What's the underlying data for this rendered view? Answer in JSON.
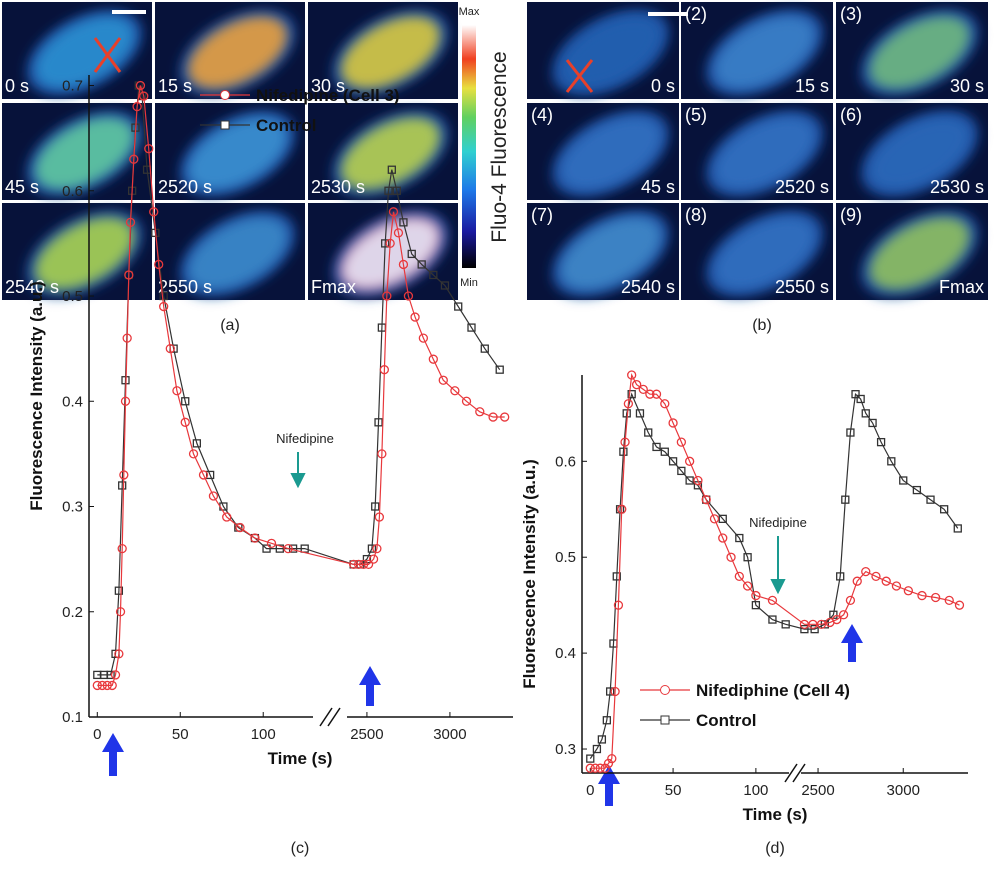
{
  "panels": [
    {
      "caption": "(a)",
      "tiles": [
        {
          "time": "0 s"
        },
        {
          "time": "15 s"
        },
        {
          "time": "30 s"
        },
        {
          "time": "45 s"
        },
        {
          "time": "2520 s"
        },
        {
          "time": "2530 s"
        },
        {
          "time": "2540 s"
        },
        {
          "time": "2550 s"
        },
        {
          "time": "Fmax"
        }
      ]
    },
    {
      "caption": "(b)",
      "tiles": [
        {
          "time": "0 s"
        },
        {
          "index": "(2)",
          "time": "15 s"
        },
        {
          "index": "(3)",
          "time": "30 s"
        },
        {
          "index": "(4)",
          "time": "45 s"
        },
        {
          "index": "(5)",
          "time": "2520 s"
        },
        {
          "index": "(6)",
          "time": "2530 s"
        },
        {
          "index": "(7)",
          "time": "2540 s"
        },
        {
          "index": "(8)",
          "time": "2550 s"
        },
        {
          "index": "(9)",
          "time": "Fmax"
        }
      ]
    }
  ],
  "colorbar": {
    "max": "Max",
    "min": "Min",
    "label": "Fluo-4 Fluorescence"
  },
  "chart_data": [
    {
      "type": "line",
      "caption": "(c)",
      "xlabel": "Time (s)",
      "ylabel": "Fluorescence Intensity (a.u.)",
      "annotation": "Nifedipine",
      "legend": "upper",
      "xlim": [
        -5,
        3380
      ],
      "xbreak": [
        130,
        2380
      ],
      "xticks": [
        0,
        50,
        100,
        2500,
        3000
      ],
      "ylim": [
        0.1,
        0.71
      ],
      "yticks": [
        0.1,
        0.2,
        0.3,
        0.4,
        0.5,
        0.6,
        0.7
      ],
      "series": [
        {
          "name": "Nifedipine (Cell 3)",
          "color": "#e8383c",
          "marker": "circle",
          "x": [
            0,
            3,
            6,
            9,
            11,
            13,
            14,
            15,
            16,
            17,
            18,
            19,
            20,
            22,
            24,
            26,
            28,
            31,
            34,
            37,
            40,
            44,
            48,
            53,
            58,
            64,
            70,
            78,
            86,
            95,
            105,
            115,
            2420,
            2450,
            2480,
            2510,
            2540,
            2560,
            2575,
            2590,
            2605,
            2620,
            2640,
            2660,
            2690,
            2720,
            2750,
            2790,
            2840,
            2900,
            2960,
            3030,
            3100,
            3180,
            3260,
            3330
          ],
          "values": [
            0.13,
            0.13,
            0.13,
            0.13,
            0.14,
            0.16,
            0.2,
            0.26,
            0.33,
            0.4,
            0.46,
            0.52,
            0.57,
            0.63,
            0.68,
            0.7,
            0.69,
            0.64,
            0.58,
            0.53,
            0.49,
            0.45,
            0.41,
            0.38,
            0.35,
            0.33,
            0.31,
            0.29,
            0.28,
            0.27,
            0.265,
            0.26,
            0.245,
            0.245,
            0.245,
            0.245,
            0.25,
            0.26,
            0.29,
            0.35,
            0.43,
            0.5,
            0.55,
            0.58,
            0.56,
            0.53,
            0.5,
            0.48,
            0.46,
            0.44,
            0.42,
            0.41,
            0.4,
            0.39,
            0.385,
            0.385
          ]
        },
        {
          "name": "Control",
          "color": "#333333",
          "marker": "square",
          "x": [
            0,
            4,
            8,
            11,
            13,
            15,
            17,
            19,
            21,
            23,
            25,
            27,
            30,
            35,
            40,
            46,
            53,
            60,
            68,
            76,
            85,
            95,
            102,
            110,
            118,
            125,
            2420,
            2460,
            2500,
            2530,
            2550,
            2570,
            2590,
            2610,
            2630,
            2650,
            2680,
            2720,
            2770,
            2830,
            2900,
            2970,
            3050,
            3130,
            3210,
            3300
          ],
          "values": [
            0.14,
            0.14,
            0.14,
            0.16,
            0.22,
            0.32,
            0.42,
            0.52,
            0.6,
            0.66,
            0.7,
            0.69,
            0.62,
            0.56,
            0.5,
            0.45,
            0.4,
            0.36,
            0.33,
            0.3,
            0.28,
            0.27,
            0.26,
            0.26,
            0.26,
            0.26,
            0.245,
            0.245,
            0.25,
            0.26,
            0.3,
            0.38,
            0.47,
            0.55,
            0.6,
            0.62,
            0.6,
            0.57,
            0.54,
            0.53,
            0.52,
            0.51,
            0.49,
            0.47,
            0.45,
            0.43
          ]
        }
      ]
    },
    {
      "type": "line",
      "caption": "(d)",
      "xlabel": "Time (s)",
      "ylabel": "Fluorescence Intensity (a.u.)",
      "annotation": "Nifedipine",
      "legend": "lower",
      "xlim": [
        -5,
        3380
      ],
      "xbreak": [
        120,
        2400
      ],
      "xticks": [
        0,
        50,
        100,
        2500,
        3000
      ],
      "ylim": [
        0.275,
        0.69
      ],
      "yticks": [
        0.3,
        0.4,
        0.5,
        0.6
      ],
      "series": [
        {
          "name": "Nifediphine (Cell 4)",
          "color": "#e8383c",
          "marker": "circle",
          "x": [
            0,
            3,
            6,
            9,
            11,
            13,
            15,
            17,
            19,
            21,
            23,
            25,
            28,
            32,
            36,
            40,
            45,
            50,
            55,
            60,
            65,
            70,
            75,
            80,
            85,
            90,
            95,
            100,
            110,
            2420,
            2470,
            2520,
            2570,
            2610,
            2650,
            2690,
            2730,
            2780,
            2840,
            2900,
            2960,
            3030,
            3110,
            3190,
            3270,
            3330
          ],
          "values": [
            0.28,
            0.28,
            0.28,
            0.28,
            0.285,
            0.29,
            0.36,
            0.45,
            0.55,
            0.62,
            0.66,
            0.69,
            0.68,
            0.675,
            0.67,
            0.67,
            0.66,
            0.64,
            0.62,
            0.6,
            0.58,
            0.56,
            0.54,
            0.52,
            0.5,
            0.48,
            0.47,
            0.46,
            0.455,
            0.43,
            0.43,
            0.43,
            0.432,
            0.435,
            0.44,
            0.455,
            0.475,
            0.485,
            0.48,
            0.475,
            0.47,
            0.465,
            0.46,
            0.458,
            0.455,
            0.45
          ]
        },
        {
          "name": "Control",
          "color": "#333333",
          "marker": "square",
          "x": [
            0,
            4,
            7,
            10,
            12,
            14,
            16,
            18,
            20,
            22,
            25,
            30,
            35,
            40,
            45,
            50,
            55,
            60,
            65,
            70,
            80,
            90,
            95,
            100,
            110,
            118,
            2420,
            2480,
            2540,
            2590,
            2630,
            2660,
            2690,
            2720,
            2750,
            2780,
            2820,
            2870,
            2930,
            3000,
            3080,
            3160,
            3240,
            3320
          ],
          "values": [
            0.29,
            0.3,
            0.31,
            0.33,
            0.36,
            0.41,
            0.48,
            0.55,
            0.61,
            0.65,
            0.67,
            0.65,
            0.63,
            0.615,
            0.61,
            0.6,
            0.59,
            0.58,
            0.575,
            0.56,
            0.54,
            0.52,
            0.5,
            0.45,
            0.435,
            0.43,
            0.425,
            0.425,
            0.43,
            0.44,
            0.48,
            0.56,
            0.63,
            0.67,
            0.665,
            0.65,
            0.64,
            0.62,
            0.6,
            0.58,
            0.57,
            0.56,
            0.55,
            0.53
          ]
        }
      ]
    }
  ]
}
